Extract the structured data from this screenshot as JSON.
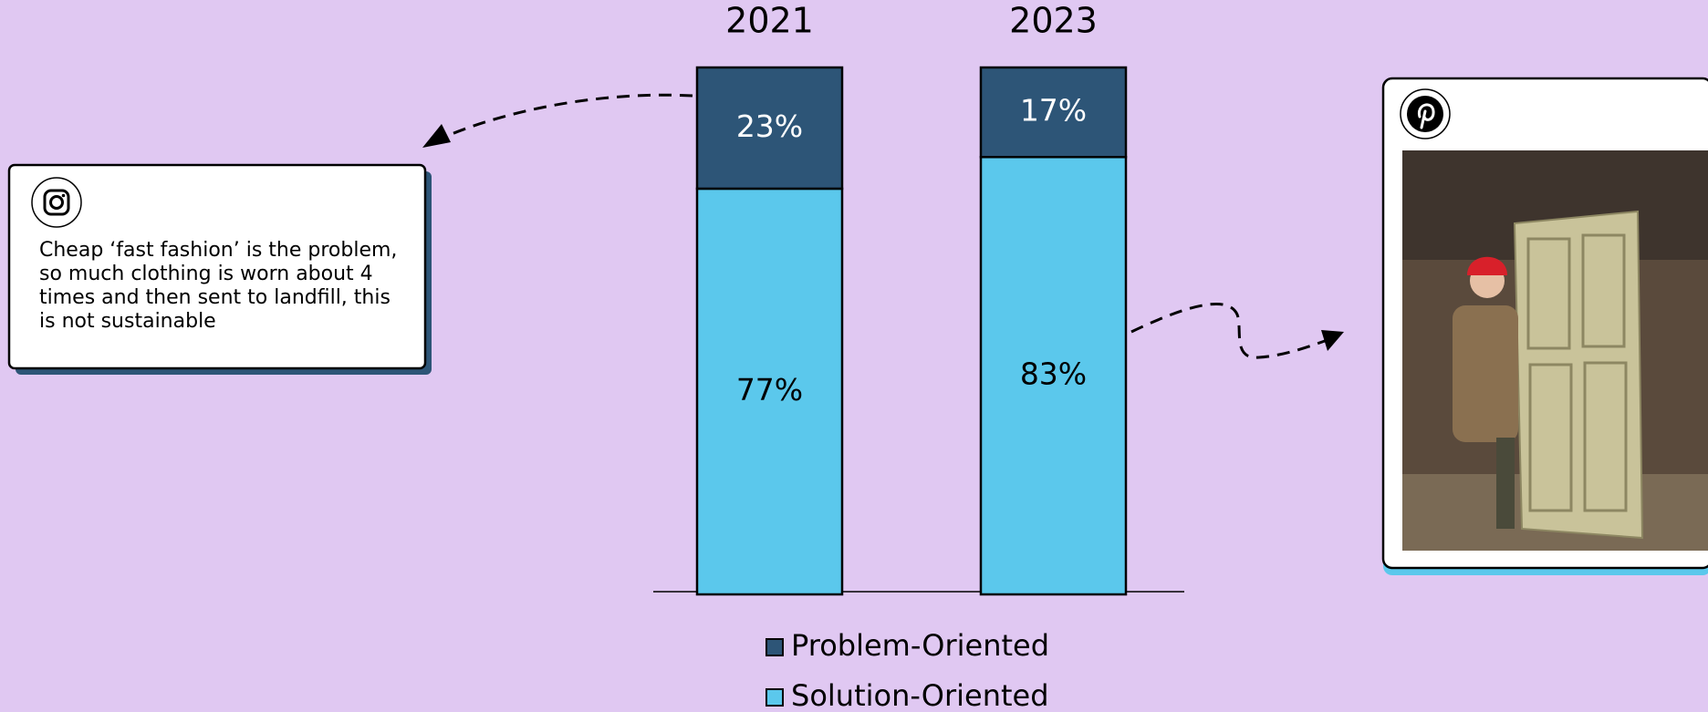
{
  "chart_data": {
    "type": "stacked_bar",
    "categories": [
      "2021",
      "2023"
    ],
    "series": [
      {
        "name": "Problem-Oriented",
        "color": "#2d5577",
        "values": [
          23,
          17
        ],
        "value_labels": [
          "23%",
          "17%"
        ]
      },
      {
        "name": "Solution-Oriented",
        "color": "#5bc8ec",
        "values": [
          77,
          83
        ],
        "value_labels": [
          "77%",
          "83%"
        ]
      }
    ],
    "ylim": [
      0,
      100
    ]
  },
  "instagram_post": {
    "lines": [
      "Cheap ‘fast fashion’ is the problem,",
      "so much clothing is worn about 4",
      "times and then sent to landfill, this",
      "is not sustainable"
    ]
  }
}
